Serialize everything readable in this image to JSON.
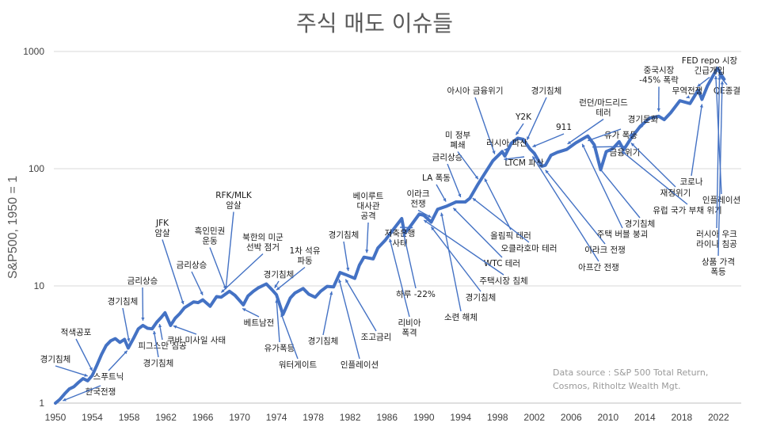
{
  "chart_data": {
    "type": "line",
    "title": "주식 매도 이슈들",
    "ylabel": "S&P500, 1950 = 1",
    "xlabel": "",
    "yscale": "log",
    "ylim": [
      1,
      1000
    ],
    "xlim": [
      1950,
      2023
    ],
    "grid": "horizontal",
    "colors": {
      "series": "#4472c4",
      "grid": "#d9d9d9",
      "text": "#404040"
    },
    "yticks": [
      "1",
      "10",
      "100",
      "1000"
    ],
    "xticks": [
      "1950",
      "1954",
      "1958",
      "1962",
      "1966",
      "1970",
      "1974",
      "1978",
      "1982",
      "1986",
      "1990",
      "1994",
      "1998",
      "2002",
      "2006",
      "2010",
      "2014",
      "2018",
      "2022"
    ],
    "series": [
      {
        "name": "",
        "points": [
          [
            1950.0,
            1.0
          ],
          [
            1950.5,
            1.08
          ],
          [
            1951.0,
            1.2
          ],
          [
            1951.5,
            1.32
          ],
          [
            1952.0,
            1.38
          ],
          [
            1952.5,
            1.5
          ],
          [
            1953.0,
            1.62
          ],
          [
            1953.5,
            1.55
          ],
          [
            1954.0,
            1.72
          ],
          [
            1954.5,
            2.1
          ],
          [
            1955.0,
            2.6
          ],
          [
            1955.5,
            3.1
          ],
          [
            1956.0,
            3.4
          ],
          [
            1956.5,
            3.55
          ],
          [
            1957.0,
            3.3
          ],
          [
            1957.5,
            3.5
          ],
          [
            1957.9,
            2.95
          ],
          [
            1958.5,
            3.6
          ],
          [
            1959.0,
            4.3
          ],
          [
            1959.5,
            4.6
          ],
          [
            1960.0,
            4.35
          ],
          [
            1960.5,
            4.3
          ],
          [
            1961.0,
            4.9
          ],
          [
            1961.5,
            5.4
          ],
          [
            1961.9,
            5.9
          ],
          [
            1962.5,
            4.6
          ],
          [
            1963.0,
            5.3
          ],
          [
            1963.5,
            5.8
          ],
          [
            1964.0,
            6.5
          ],
          [
            1965.0,
            7.3
          ],
          [
            1965.5,
            7.2
          ],
          [
            1966.0,
            7.6
          ],
          [
            1966.8,
            6.7
          ],
          [
            1967.5,
            8.1
          ],
          [
            1968.0,
            8.0
          ],
          [
            1968.9,
            9.0
          ],
          [
            1969.5,
            8.3
          ],
          [
            1970.4,
            6.9
          ],
          [
            1970.9,
            8.2
          ],
          [
            1971.5,
            9.0
          ],
          [
            1972.0,
            9.6
          ],
          [
            1972.9,
            10.4
          ],
          [
            1973.5,
            9.3
          ],
          [
            1974.0,
            8.4
          ],
          [
            1974.7,
            5.7
          ],
          [
            1975.5,
            7.9
          ],
          [
            1976.0,
            8.7
          ],
          [
            1976.9,
            9.5
          ],
          [
            1977.5,
            8.5
          ],
          [
            1978.2,
            8.0
          ],
          [
            1978.8,
            9.0
          ],
          [
            1979.5,
            9.9
          ],
          [
            1980.2,
            9.8
          ],
          [
            1980.9,
            13.0
          ],
          [
            1981.5,
            12.5
          ],
          [
            1982.5,
            11.6
          ],
          [
            1983.0,
            15.0
          ],
          [
            1983.5,
            17.6
          ],
          [
            1984.5,
            17.0
          ],
          [
            1985.0,
            21.0
          ],
          [
            1985.8,
            24.5
          ],
          [
            1986.5,
            29.0
          ],
          [
            1987.6,
            37.5
          ],
          [
            1987.9,
            28.0
          ],
          [
            1988.5,
            32.0
          ],
          [
            1989.5,
            41.0
          ],
          [
            1990.0,
            40.0
          ],
          [
            1990.8,
            35.0
          ],
          [
            1991.5,
            45.0
          ],
          [
            1992.5,
            48.0
          ],
          [
            1993.5,
            52.0
          ],
          [
            1994.5,
            52.0
          ],
          [
            1995.0,
            56.0
          ],
          [
            1995.8,
            72.0
          ],
          [
            1996.5,
            88.0
          ],
          [
            1997.5,
            117.0
          ],
          [
            1998.5,
            140.0
          ],
          [
            1998.8,
            128.0
          ],
          [
            1999.5,
            165.0
          ],
          [
            2000.2,
            182.0
          ],
          [
            2000.8,
            178.0
          ],
          [
            2001.5,
            148.0
          ],
          [
            2002.0,
            135.0
          ],
          [
            2002.8,
            105.0
          ],
          [
            2003.2,
            107.0
          ],
          [
            2003.8,
            130.0
          ],
          [
            2004.5,
            138.0
          ],
          [
            2005.5,
            146.0
          ],
          [
            2006.5,
            166.0
          ],
          [
            2007.8,
            190.0
          ],
          [
            2008.5,
            160.0
          ],
          [
            2009.2,
            98.0
          ],
          [
            2009.8,
            140.0
          ],
          [
            2010.5,
            148.0
          ],
          [
            2011.2,
            170.0
          ],
          [
            2011.7,
            145.0
          ],
          [
            2012.5,
            182.0
          ],
          [
            2013.5,
            230.0
          ],
          [
            2014.5,
            270.0
          ],
          [
            2015.5,
            280.0
          ],
          [
            2016.1,
            262.0
          ],
          [
            2016.8,
            300.0
          ],
          [
            2017.8,
            380.0
          ],
          [
            2018.9,
            360.0
          ],
          [
            2019.8,
            470.0
          ],
          [
            2020.2,
            390.0
          ],
          [
            2020.8,
            510.0
          ],
          [
            2021.5,
            640.0
          ],
          [
            2021.9,
            720.0
          ],
          [
            2022.3,
            630.0
          ],
          [
            2022.6,
            580.0
          ]
        ]
      }
    ],
    "annotations": [
      {
        "text": "경기침체",
        "year": 1953.5
      },
      {
        "text": "적색공포",
        "year": 1954.0
      },
      {
        "text": "한국전쟁",
        "year": 1950.8
      },
      {
        "text": "스푸트닉",
        "year": 1957.8
      },
      {
        "text": "경기침체",
        "year": 1958.0
      },
      {
        "text": "금리상승",
        "year": 1959.5
      },
      {
        "text": "JFK 암살",
        "year": 1963.9
      },
      {
        "text": "피그스만 침공",
        "year": 1961.3
      },
      {
        "text": "경기침체",
        "year": 1960.7
      },
      {
        "text": "쿠바 미사일 사태",
        "year": 1962.8
      },
      {
        "text": "금리상승",
        "year": 1966.0
      },
      {
        "text": "흑인민권 운동",
        "year": 1968.5
      },
      {
        "text": "RFK/MLK 암살",
        "year": 1968.5
      },
      {
        "text": "북한의 미군 선박 점거",
        "year": 1968.0
      },
      {
        "text": "베트남전",
        "year": 1970.3
      },
      {
        "text": "경기침체",
        "year": 1973.8
      },
      {
        "text": "1차 석유 파동",
        "year": 1974.0
      },
      {
        "text": "유가폭등",
        "year": 1974.0
      },
      {
        "text": "워터게이트",
        "year": 1974.5
      },
      {
        "text": "경기침체",
        "year": 1980.0
      },
      {
        "text": "경기침체",
        "year": 1981.8
      },
      {
        "text": "인플레이션",
        "year": 1980.8
      },
      {
        "text": "베이루트 대사관 공격",
        "year": 1983.8
      },
      {
        "text": "조고금리",
        "year": 1981.5
      },
      {
        "text": "리비아 폭격",
        "year": 1986.3
      },
      {
        "text": "저축은행 사태",
        "year": 1988.8
      },
      {
        "text": "하루 -22%",
        "year": 1987.8
      },
      {
        "text": "이라크 전쟁",
        "year": 1990.8
      },
      {
        "text": "LA 폭동",
        "year": 1992.4
      },
      {
        "text": "금리상승",
        "year": 1994.0
      },
      {
        "text": "미 정부 폐쇄",
        "year": 1995.9
      },
      {
        "text": "아시아 금융위기",
        "year": 1997.7
      },
      {
        "text": "러시아 파산",
        "year": 1998.7
      },
      {
        "text": "LTCM 파산",
        "year": 1998.7
      },
      {
        "text": "Y2K",
        "year": 2000.0
      },
      {
        "text": "경기침체",
        "year": 2001.2
      },
      {
        "text": "911",
        "year": 2001.8
      },
      {
        "text": "올림픽 테러",
        "year": 1996.6
      },
      {
        "text": "오클라호마 테러",
        "year": 1995.3
      },
      {
        "text": "WTC 테러",
        "year": 1993.2
      },
      {
        "text": "주택시장 침체",
        "year": 1990.0
      },
      {
        "text": "경기침체",
        "year": 1990.8
      },
      {
        "text": "소련 해체",
        "year": 1991.9
      },
      {
        "text": "런던/마드리드 테러",
        "year": 2005.6
      },
      {
        "text": "유가 폭등",
        "year": 2007.8
      },
      {
        "text": "금융위기",
        "year": 2008.3
      },
      {
        "text": "경기둔화",
        "year": 2012.3
      },
      {
        "text": "아프간 전쟁",
        "year": 2001.8
      },
      {
        "text": "이라크 전쟁",
        "year": 2003.2
      },
      {
        "text": "주택 버블 붕괴",
        "year": 2007.2
      },
      {
        "text": "경기침체",
        "year": 2009.0
      },
      {
        "text": "유럽 국가 부채 위기",
        "year": 2011.5
      },
      {
        "text": "재정위기",
        "year": 2012.5
      },
      {
        "text": "중국시장 -45% 폭락",
        "year": 2015.5
      },
      {
        "text": "무역전쟁",
        "year": 2018.5
      },
      {
        "text": "FED repo 시장 긴급개입",
        "year": 2019.7
      },
      {
        "text": "QE종결",
        "year": 2022.0
      },
      {
        "text": "코로나",
        "year": 2020.2
      },
      {
        "text": "인플레이션",
        "year": 2021.7
      },
      {
        "text": "러시아 우크라이나 침공",
        "year": 2022.1
      },
      {
        "text": "상품 가격 폭등",
        "year": 2022.4
      }
    ],
    "source_note": [
      "Data source : S&P 500 Total Return,",
      "Cosmos, Ritholtz Wealth Mgt."
    ]
  }
}
